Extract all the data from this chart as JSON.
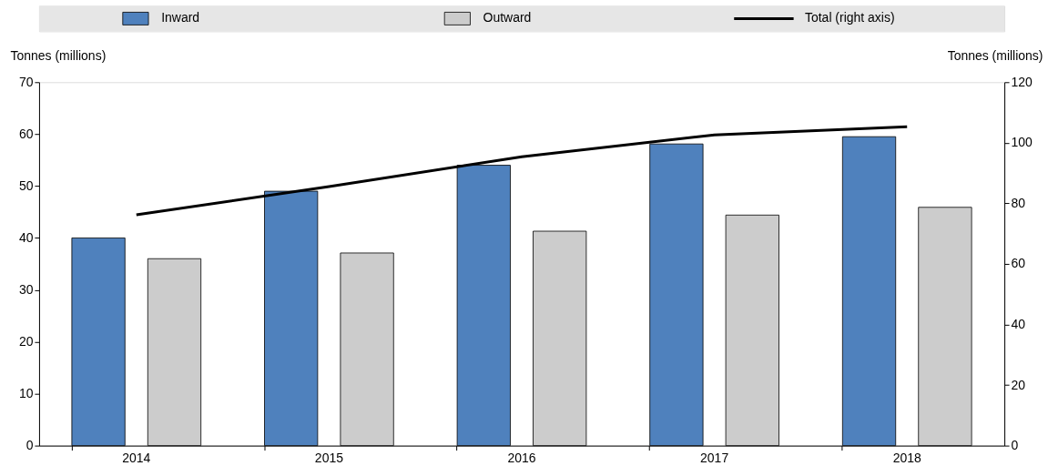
{
  "chart_data": {
    "type": "bar",
    "categories": [
      "2014",
      "2015",
      "2016",
      "2017",
      "2018"
    ],
    "series": [
      {
        "name": "Inward",
        "color": "#4f81bd",
        "values": [
          40,
          49,
          54,
          58.1,
          59.5
        ]
      },
      {
        "name": "Outward",
        "color": "#cccccc",
        "values": [
          36,
          37.1,
          41.3,
          44.4,
          45.9
        ]
      },
      {
        "name": "Total (right axis)",
        "type": "line",
        "axis": "y2",
        "color": "#000000",
        "values": [
          76.2,
          85.5,
          95.4,
          102.6,
          105.3
        ]
      }
    ],
    "ylabel": "Tonnes (millions)",
    "y2label": "Tonnes (millions)",
    "ylim": [
      0,
      70
    ],
    "yticks": [
      0,
      10,
      20,
      30,
      40,
      50,
      60,
      70
    ],
    "y2lim": [
      0,
      120
    ],
    "y2ticks": [
      0,
      20,
      40,
      60,
      80,
      100,
      120
    ],
    "legend": "top",
    "grid": false
  }
}
